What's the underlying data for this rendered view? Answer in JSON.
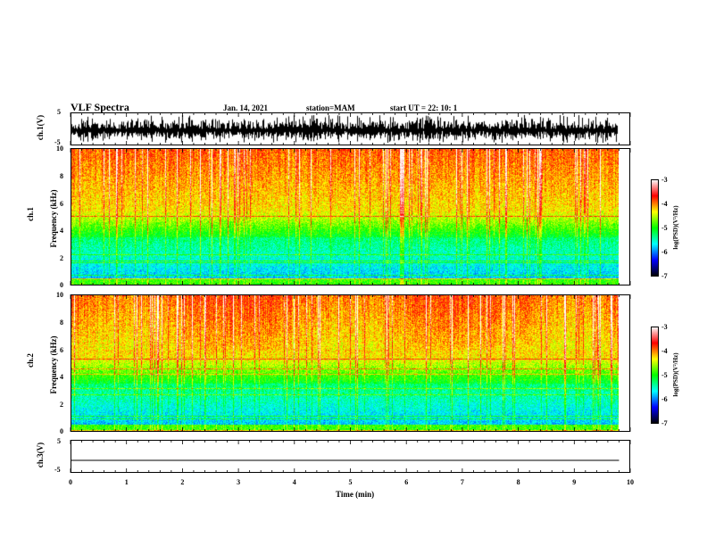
{
  "header": {
    "title": "VLF Spectra",
    "date": "Jan. 14, 2021",
    "station": "station=MAM",
    "start": "start  UT =   22: 10: 1"
  },
  "colors": {
    "colormap": [
      "#ffffff",
      "#ff0000",
      "#ffff00",
      "#00ff00",
      "#00ffff",
      "#0000ff",
      "#000000"
    ]
  },
  "chart_data": [
    {
      "type": "line",
      "name": "ch1-waveform",
      "ylabel": "ch.1(V)",
      "ylim": [
        -5,
        5
      ],
      "yticks": [
        "5",
        "-5"
      ],
      "xlim": [
        0,
        10
      ]
    },
    {
      "type": "heatmap",
      "name": "ch1-spectrogram",
      "ylabel_top": "ch.1",
      "ylabel": "Frequency (kHz)",
      "ylim": [
        0,
        10
      ],
      "yticks": [
        "0",
        "2",
        "4",
        "6",
        "8",
        "10"
      ],
      "xlim": [
        0,
        10
      ],
      "colorbar": {
        "label": "log(PSD)(V²/Hz)",
        "range": [
          -7,
          -3
        ],
        "ticks": [
          "-3",
          "-4",
          "-5",
          "-6",
          "-7"
        ]
      }
    },
    {
      "type": "heatmap",
      "name": "ch2-spectrogram",
      "ylabel_top": "ch.2",
      "ylabel": "Frequency (kHz)",
      "ylim": [
        0,
        10
      ],
      "yticks": [
        "0",
        "2",
        "4",
        "6",
        "8",
        "10"
      ],
      "xlim": [
        0,
        10
      ],
      "colorbar": {
        "label": "log(PSD)(V²/Hz)",
        "range": [
          -7,
          -3
        ],
        "ticks": [
          "-3",
          "-4",
          "-5",
          "-6",
          "-7"
        ]
      }
    },
    {
      "type": "line",
      "name": "ch3-waveform",
      "ylabel": "ch.3(V)",
      "ylim": [
        -5,
        5
      ],
      "yticks": [
        "5",
        "-5"
      ],
      "x": [
        0,
        9.8
      ],
      "y": [
        -1.2,
        -1.2
      ],
      "xlim": [
        0,
        10
      ],
      "xlabel": "Time (min)",
      "xticks": [
        "0",
        "1",
        "2",
        "3",
        "4",
        "5",
        "6",
        "7",
        "8",
        "9",
        "10"
      ]
    }
  ]
}
